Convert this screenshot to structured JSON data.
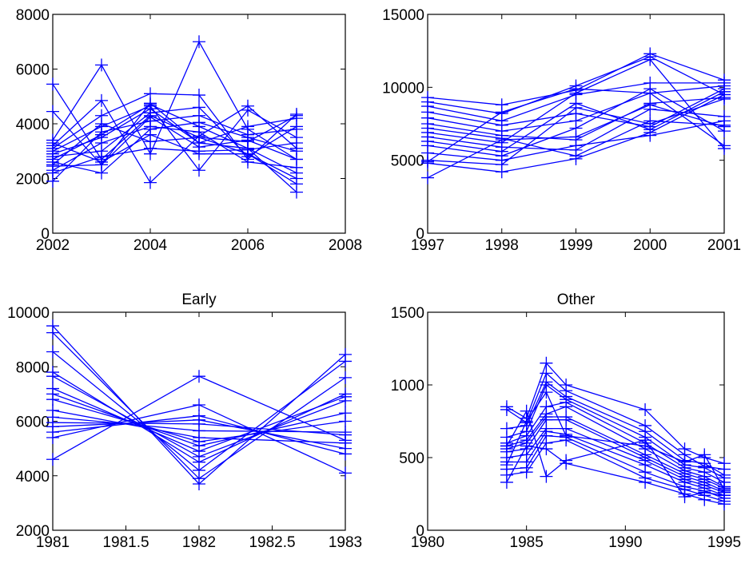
{
  "colors": {
    "series": "#0000ff",
    "axes": "#000000",
    "background": "#ffffff"
  },
  "marker": "plus",
  "chart_data": [
    {
      "type": "line",
      "title": "",
      "xlabel": "",
      "ylabel": "",
      "xlim": [
        2002,
        2008
      ],
      "ylim": [
        0,
        8000
      ],
      "xticks": [
        2002,
        2004,
        2006,
        2008
      ],
      "yticks": [
        0,
        2000,
        4000,
        6000,
        8000
      ],
      "x": [
        2002,
        2003,
        2004,
        2005,
        2006,
        2007
      ],
      "series": [
        {
          "values": [
            5450,
            2700,
            4300,
            3500,
            2900,
            1800
          ]
        },
        {
          "values": [
            4450,
            2500,
            4750,
            3300,
            3100,
            2200
          ]
        },
        {
          "values": [
            3400,
            6150,
            2900,
            7000,
            3800,
            2700
          ]
        },
        {
          "values": [
            3200,
            4850,
            1850,
            3550,
            4650,
            3100
          ]
        },
        {
          "values": [
            3100,
            4300,
            5100,
            5050,
            2700,
            4350
          ]
        },
        {
          "values": [
            3000,
            3900,
            4650,
            2300,
            4500,
            3500
          ]
        },
        {
          "values": [
            2900,
            3500,
            4550,
            3300,
            3900,
            4200
          ]
        },
        {
          "values": [
            2800,
            3000,
            4400,
            4600,
            2800,
            3900
          ]
        },
        {
          "values": [
            2700,
            3600,
            4700,
            3900,
            3100,
            1500
          ]
        },
        {
          "values": [
            2600,
            2200,
            3800,
            4050,
            3500,
            3000
          ]
        },
        {
          "values": [
            2450,
            2500,
            4250,
            3150,
            3400,
            2700
          ]
        },
        {
          "values": [
            2300,
            3300,
            3900,
            3700,
            2600,
            2400
          ]
        },
        {
          "values": [
            2200,
            2800,
            3100,
            3000,
            3050,
            3300
          ]
        },
        {
          "values": [
            1900,
            3700,
            4100,
            4300,
            3600,
            3800
          ]
        },
        {
          "values": [
            3300,
            2600,
            3600,
            2900,
            2900,
            2000
          ]
        },
        {
          "values": [
            2500,
            4000,
            3350,
            3500,
            3350,
            4300
          ]
        }
      ]
    },
    {
      "type": "line",
      "title": "",
      "xlabel": "",
      "ylabel": "",
      "xlim": [
        1997,
        2001
      ],
      "ylim": [
        0,
        15000
      ],
      "xticks": [
        1997,
        1998,
        1999,
        2000,
        2001
      ],
      "yticks": [
        0,
        5000,
        10000,
        15000
      ],
      "x": [
        1997,
        1998,
        1999,
        2000,
        2001
      ],
      "series": [
        {
          "values": [
            9300,
            8800,
            9800,
            12300,
            10500
          ]
        },
        {
          "values": [
            9000,
            8200,
            10100,
            12100,
            9500
          ]
        },
        {
          "values": [
            8700,
            7700,
            9500,
            10300,
            10300
          ]
        },
        {
          "values": [
            8300,
            7400,
            8200,
            7300,
            9900
          ]
        },
        {
          "values": [
            7900,
            7000,
            7700,
            9600,
            10100
          ]
        },
        {
          "values": [
            7500,
            6700,
            6400,
            8900,
            9300
          ]
        },
        {
          "values": [
            7200,
            6500,
            5300,
            7700,
            7400
          ]
        },
        {
          "values": [
            6900,
            6200,
            9600,
            11900,
            5800
          ]
        },
        {
          "values": [
            6600,
            5900,
            5700,
            8500,
            8000
          ]
        },
        {
          "values": [
            6300,
            5600,
            8900,
            7100,
            9700
          ]
        },
        {
          "values": [
            6000,
            5300,
            7200,
            9900,
            7000
          ]
        },
        {
          "values": [
            5500,
            5000,
            6000,
            6700,
            7700
          ]
        },
        {
          "values": [
            5000,
            4700,
            8600,
            7500,
            9200
          ]
        },
        {
          "values": [
            4800,
            4200,
            5100,
            6900,
            9500
          ]
        },
        {
          "values": [
            3800,
            6400,
            6600,
            8800,
            7300
          ]
        },
        {
          "values": [
            4900,
            8300,
            9900,
            9600,
            6000
          ]
        }
      ]
    },
    {
      "type": "line",
      "title": "Early",
      "xlabel": "",
      "ylabel": "",
      "xlim": [
        1981,
        1983
      ],
      "ylim": [
        2000,
        10000
      ],
      "xticks": [
        1981,
        1981.5,
        1982,
        1982.5,
        1983
      ],
      "xticklabels": [
        "1981",
        "1981.5",
        "1982",
        "1982.5",
        "1983"
      ],
      "yticks": [
        2000,
        4000,
        6000,
        8000,
        10000
      ],
      "x": [
        1981,
        1982,
        1983
      ],
      "series": [
        {
          "values": [
            9500,
            3700,
            8450
          ]
        },
        {
          "values": [
            9250,
            3900,
            7600
          ]
        },
        {
          "values": [
            8550,
            4200,
            8200
          ]
        },
        {
          "values": [
            7800,
            4500,
            7000
          ]
        },
        {
          "values": [
            7650,
            4700,
            6750
          ]
        },
        {
          "values": [
            7200,
            4900,
            6900
          ]
        },
        {
          "values": [
            7000,
            5100,
            6300
          ]
        },
        {
          "values": [
            6800,
            5250,
            6000
          ]
        },
        {
          "values": [
            6400,
            5400,
            5200
          ]
        },
        {
          "values": [
            6150,
            5650,
            5600
          ]
        },
        {
          "values": [
            5950,
            5900,
            5500
          ]
        },
        {
          "values": [
            5800,
            6050,
            5000
          ]
        },
        {
          "values": [
            5600,
            6200,
            4800
          ]
        },
        {
          "values": [
            5400,
            6600,
            4100
          ]
        },
        {
          "values": [
            4600,
            7650,
            5300
          ]
        }
      ]
    },
    {
      "type": "line",
      "title": "Other",
      "xlabel": "",
      "ylabel": "",
      "xlim": [
        1980,
        1995
      ],
      "ylim": [
        0,
        1500
      ],
      "xticks": [
        1980,
        1985,
        1990,
        1995
      ],
      "yticks": [
        0,
        500,
        1000,
        1500
      ],
      "series": [
        {
          "x": [
            1984,
            1985,
            1986,
            1987,
            1991,
            1993,
            1994,
            1995
          ],
          "values": [
            850,
            770,
            1150,
            1000,
            830,
            560,
            500,
            460
          ]
        },
        {
          "x": [
            1984,
            1985,
            1986,
            1987,
            1991,
            1993,
            1994,
            1995
          ],
          "values": [
            830,
            740,
            1080,
            960,
            720,
            520,
            440,
            420
          ]
        },
        {
          "x": [
            1984,
            1985,
            1986,
            1987,
            1991,
            1993,
            1994,
            1995
          ],
          "values": [
            700,
            720,
            1020,
            920,
            680,
            480,
            460,
            380
          ]
        },
        {
          "x": [
            1984,
            1985,
            1986,
            1987,
            1991,
            1993,
            1994,
            1995
          ],
          "values": [
            640,
            680,
            1000,
            900,
            640,
            450,
            430,
            360
          ]
        },
        {
          "x": [
            1984,
            1985,
            1986,
            1987,
            1991,
            1993,
            1994,
            1995
          ],
          "values": [
            600,
            650,
            850,
            880,
            600,
            430,
            400,
            330
          ]
        },
        {
          "x": [
            1984,
            1985,
            1986,
            1987,
            1991,
            1993,
            1994,
            1995
          ],
          "values": [
            580,
            620,
            800,
            850,
            560,
            410,
            370,
            300
          ]
        },
        {
          "x": [
            1984,
            1985,
            1986,
            1987,
            1991,
            1993,
            1994,
            1995
          ],
          "values": [
            560,
            600,
            780,
            780,
            520,
            390,
            350,
            290
          ]
        },
        {
          "x": [
            1984,
            1985,
            1986,
            1987,
            1991,
            1993,
            1994,
            1995
          ],
          "values": [
            540,
            560,
            760,
            760,
            500,
            370,
            330,
            270
          ]
        },
        {
          "x": [
            1984,
            1985,
            1986,
            1987,
            1991,
            1993,
            1994,
            1995
          ],
          "values": [
            500,
            520,
            700,
            700,
            480,
            350,
            310,
            260
          ]
        },
        {
          "x": [
            1984,
            1985,
            1986,
            1987,
            1991,
            1993,
            1994,
            1995
          ],
          "values": [
            470,
            470,
            680,
            660,
            450,
            330,
            290,
            240
          ]
        },
        {
          "x": [
            1984,
            1985,
            1986,
            1987,
            1991,
            1993,
            1994,
            1995
          ],
          "values": [
            420,
            430,
            650,
            640,
            400,
            300,
            270,
            220
          ]
        },
        {
          "x": [
            1984,
            1985,
            1986,
            1987,
            1991,
            1993,
            1994,
            1995
          ],
          "values": [
            380,
            400,
            600,
            620,
            360,
            280,
            240,
            200
          ]
        },
        {
          "x": [
            1984,
            1985,
            1986,
            1987,
            1991,
            1993,
            1994,
            1995
          ],
          "values": [
            330,
            580,
            560,
            460,
            330,
            250,
            210,
            180
          ]
        },
        {
          "x": [
            1984,
            1985,
            1986,
            1987,
            1991,
            1993,
            1994,
            1995
          ],
          "values": [
            580,
            820,
            370,
            480,
            620,
            230,
            260,
            240
          ]
        },
        {
          "x": [
            1984,
            1985,
            1986,
            1987,
            1991,
            1993,
            1994,
            1995
          ],
          "values": [
            450,
            750,
            950,
            650,
            580,
            470,
            520,
            280
          ]
        }
      ]
    }
  ]
}
